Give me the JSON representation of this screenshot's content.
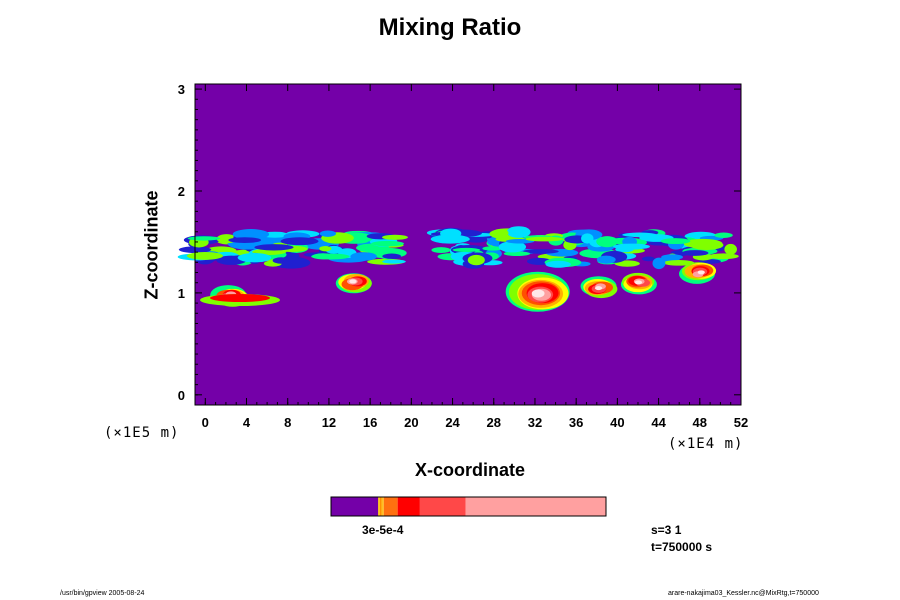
{
  "chart_data": {
    "type": "heatmap",
    "title": "Mixing Ratio",
    "xlabel": "X-coordinate",
    "ylabel": "Z-coordinate",
    "x_unit": "(×1E4 m)",
    "y_unit": "(×1E5 m)",
    "xlim": [
      -1,
      52
    ],
    "ylim": [
      -0.1,
      3.05
    ],
    "x_ticks": [
      "0",
      "4",
      "8",
      "12",
      "16",
      "20",
      "24",
      "28",
      "32",
      "36",
      "40",
      "44",
      "48",
      "52"
    ],
    "y_ticks": [
      "0",
      "1",
      "2",
      "3"
    ],
    "grid": false,
    "background_color": "#7400a8",
    "levels": [
      "#2020d0",
      "#0090ff",
      "#00e0ff",
      "#00ff80",
      "#80ff00",
      "#ffff00",
      "#ffb000",
      "#ff5000",
      "#ff0000",
      "#ff4848",
      "#ffa0a0",
      "#ffe8e8"
    ],
    "colorbar": {
      "label_text": "3e-5e-4",
      "segments": [
        {
          "color": "#7400a8",
          "frac": 0.17
        },
        {
          "color": "#ffc800",
          "frac": 0.006
        },
        {
          "color": "#ff9000",
          "frac": 0.006
        },
        {
          "color": "#ffc020",
          "frac": 0.008
        },
        {
          "color": "#ff7010",
          "frac": 0.05
        },
        {
          "color": "#ff0000",
          "frac": 0.08
        },
        {
          "color": "#ff4848",
          "frac": 0.165
        },
        {
          "color": "#ffa0a0",
          "frac": 0.505
        }
      ]
    }
  },
  "stats": {
    "s": "s=3 1",
    "t": "t=750000 s"
  },
  "footer": {
    "left": "/usr/bin/gpview 2005-08-24",
    "right": "arare-nakajima03_Kessler.nc@MixRtg,t=750000"
  }
}
